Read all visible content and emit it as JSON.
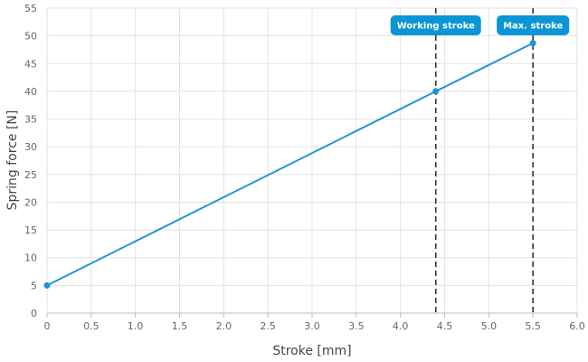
{
  "chart_data": {
    "type": "line",
    "xlabel": "Stroke [mm]",
    "ylabel": "Spring force [N]",
    "xlim": [
      0,
      6
    ],
    "ylim": [
      0,
      55
    ],
    "x_ticks": [
      0,
      0.5,
      1,
      1.5,
      2,
      2.5,
      3,
      3.5,
      4,
      4.5,
      5,
      5.5,
      6
    ],
    "x_tick_labels": [
      "0",
      "0.5",
      "1.0",
      "1.5",
      "2.0",
      "2.5",
      "3.0",
      "3.5",
      "4.0",
      "4.5",
      "5.0",
      "5.5",
      "6.0"
    ],
    "y_ticks": [
      0,
      5,
      10,
      15,
      20,
      25,
      30,
      35,
      40,
      45,
      50,
      55
    ],
    "y_tick_labels": [
      "0",
      "5",
      "10",
      "15",
      "20",
      "25",
      "30",
      "35",
      "40",
      "45",
      "50",
      "55"
    ],
    "grid": true,
    "series": [
      {
        "color": "#1b96d1",
        "points": [
          {
            "x": 0,
            "y": 5
          },
          {
            "x": 4.4,
            "y": 40
          },
          {
            "x": 5.5,
            "y": 48.7
          }
        ]
      }
    ],
    "markers": [
      {
        "x": 4.4,
        "label": "Working stroke"
      },
      {
        "x": 5.5,
        "label": "Max. stroke"
      }
    ],
    "colors": {
      "line": "#1b96d1",
      "badge": "#0a96d6",
      "marker_line": "#333333",
      "grid": "#e3e3e3",
      "axis": "#bbbbbb"
    }
  }
}
